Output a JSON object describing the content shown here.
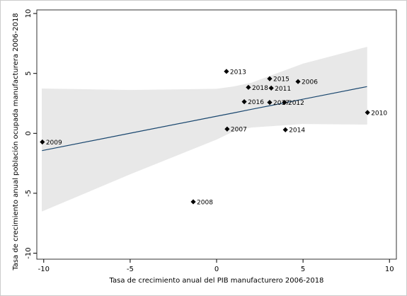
{
  "chart_data": {
    "type": "scatter",
    "x_label": "Tasa de crecimiento anual del PIB manufacturero 2006-2018",
    "y_label": "Tasa de crecimiento anual población ocupada manufacturera 2006-2018",
    "xlim": [
      -10.4,
      10.4
    ],
    "ylim": [
      -10.5,
      10.3
    ],
    "xticks": [
      -10,
      -5,
      0,
      5,
      10
    ],
    "yticks": [
      -10,
      -5,
      0,
      5,
      10
    ],
    "grid": false,
    "points": {
      "color": "#000000",
      "labels": [
        "2009",
        "2013",
        "2015",
        "2006",
        "2018",
        "2011",
        "2016",
        "2017",
        "2012",
        "2010",
        "2007",
        "2014",
        "2008"
      ],
      "x": [
        -10.08,
        0.57,
        3.07,
        4.71,
        1.84,
        3.16,
        1.6,
        3.07,
        3.93,
        8.73,
        0.61,
        3.98,
        -1.35
      ],
      "values": [
        -0.72,
        5.17,
        4.56,
        4.32,
        3.84,
        3.78,
        2.64,
        2.58,
        2.58,
        1.74,
        0.36,
        0.3,
        -5.71
      ]
    },
    "fit": {
      "color": "#1a476f",
      "band_color": "#e8e8e8",
      "x": [
        -10.1,
        -5,
        0,
        1,
        2,
        5,
        8.7
      ],
      "values": [
        -1.44,
        0.01,
        1.43,
        1.71,
        2.0,
        2.85,
        3.9
      ],
      "ci_upper": [
        3.72,
        3.6,
        3.7,
        3.9,
        4.2,
        5.8,
        7.2
      ],
      "ci_lower": [
        -6.5,
        -3.4,
        -0.5,
        0.2,
        0.5,
        0.8,
        0.75
      ]
    }
  }
}
